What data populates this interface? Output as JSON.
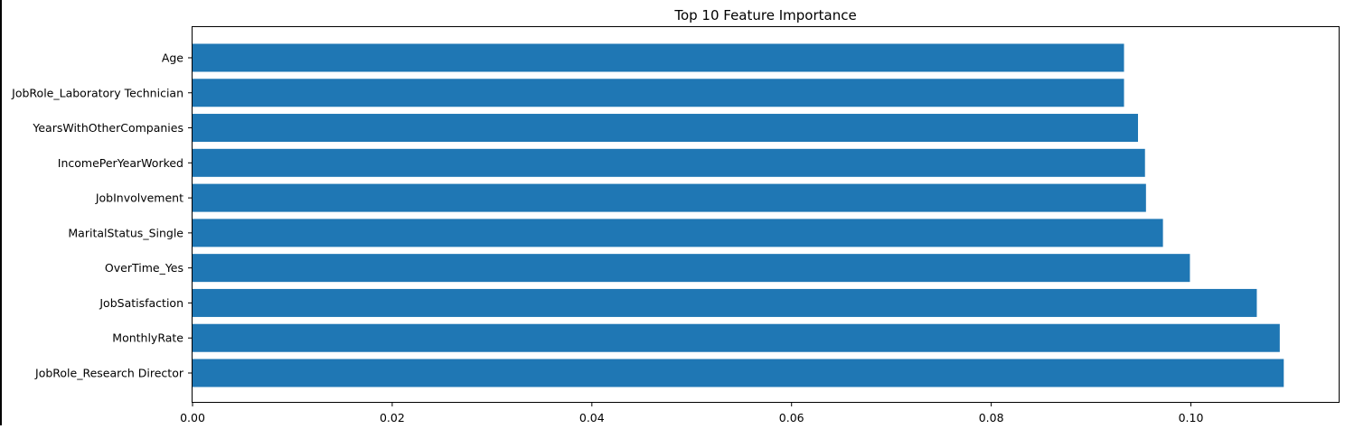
{
  "chart_data": {
    "type": "bar",
    "orientation": "horizontal",
    "title": "Top 10 Feature Importance",
    "xlabel": "",
    "ylabel": "",
    "categories": [
      "JobRole_Research Director",
      "MonthlyRate",
      "JobSatisfaction",
      "OverTime_Yes",
      "MaritalStatus_Single",
      "JobInvolvement",
      "IncomePerYearWorked",
      "YearsWithOtherCompanies",
      "JobRole_Laboratory Technician",
      "Age"
    ],
    "values": [
      0.1093,
      0.1089,
      0.1066,
      0.0999,
      0.0972,
      0.0955,
      0.0954,
      0.0947,
      0.0933,
      0.0933
    ],
    "xlim": [
      0.0,
      0.1148
    ],
    "xticks": [
      0.0,
      0.02,
      0.04,
      0.06,
      0.08,
      0.1
    ],
    "xtick_labels": [
      "0.00",
      "0.02",
      "0.04",
      "0.06",
      "0.08",
      "0.10"
    ],
    "grid": false,
    "legend": "none",
    "bar_color": "#1f77b4"
  }
}
